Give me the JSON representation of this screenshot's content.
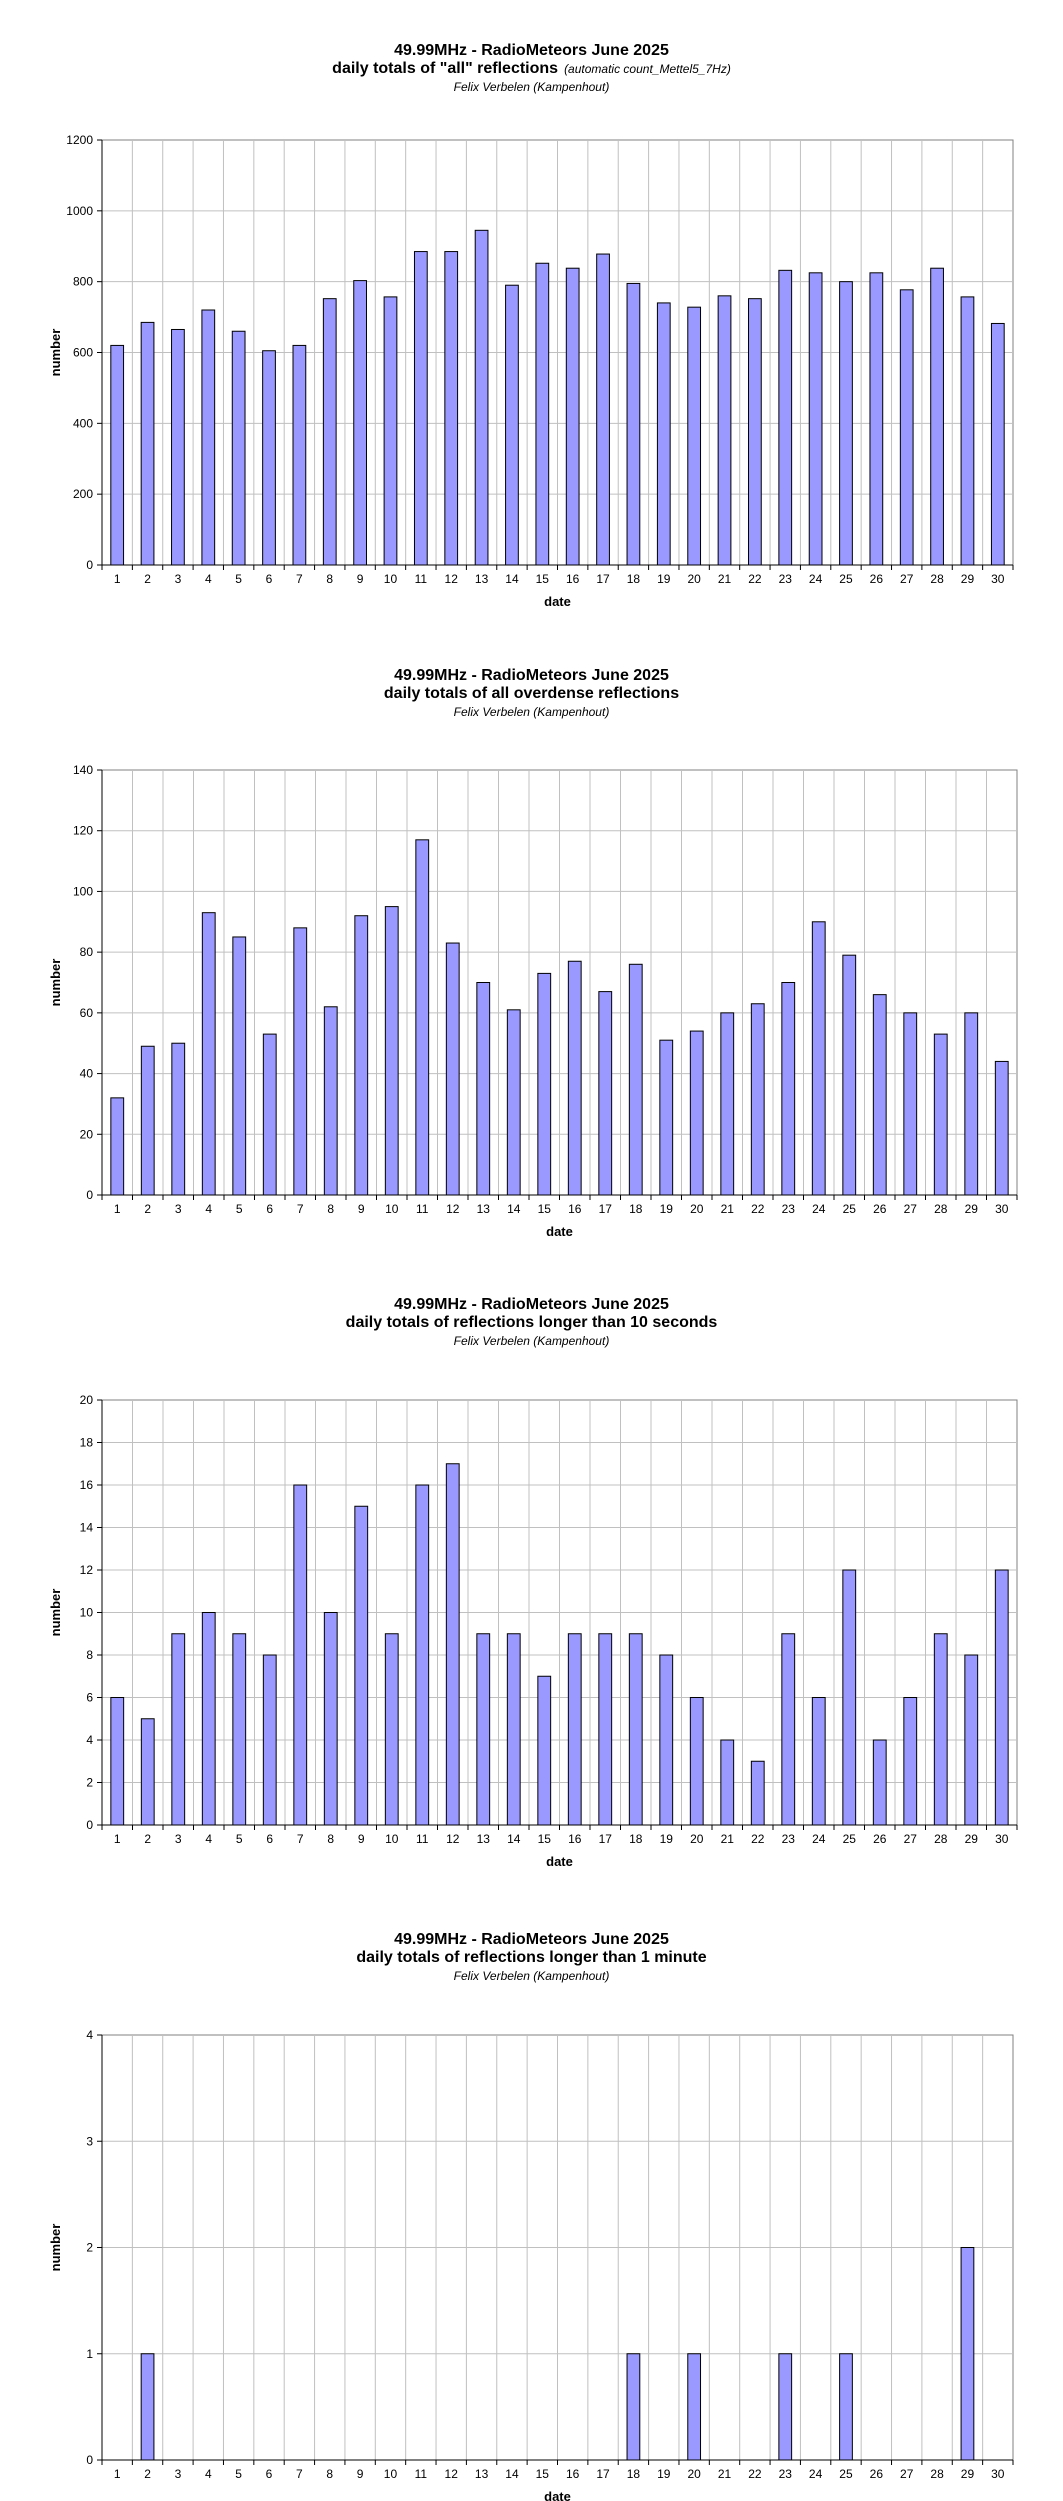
{
  "chart_data": [
    {
      "type": "bar",
      "title_line1": "49.99MHz - RadioMeteors June 2025",
      "title_line2": "daily totals of \"all\" reflections",
      "title_note": "(automatic count_Mettel5_7Hz)",
      "subtitle": "Felix Verbelen (Kampenhout)",
      "xlabel": "date",
      "ylabel": "number",
      "ylim": [
        0,
        1200
      ],
      "yticks": [
        0,
        200,
        400,
        600,
        800,
        1000,
        1200
      ],
      "categories": [
        "1",
        "2",
        "3",
        "4",
        "5",
        "6",
        "7",
        "8",
        "9",
        "10",
        "11",
        "12",
        "13",
        "14",
        "15",
        "16",
        "17",
        "18",
        "19",
        "20",
        "21",
        "22",
        "23",
        "24",
        "25",
        "26",
        "27",
        "28",
        "29",
        "30"
      ],
      "values": [
        620,
        685,
        665,
        720,
        660,
        605,
        620,
        752,
        803,
        757,
        885,
        885,
        945,
        790,
        852,
        838,
        878,
        795,
        740,
        728,
        760,
        752,
        832,
        825,
        800,
        825,
        777,
        838,
        757,
        682
      ],
      "grid": true,
      "legend": "none",
      "bar_color": "#9999ff"
    },
    {
      "type": "bar",
      "title_line1": "49.99MHz - RadioMeteors June 2025",
      "title_line2": "daily totals of all overdense reflections",
      "title_note": "",
      "subtitle": "Felix Verbelen (Kampenhout)",
      "xlabel": "date",
      "ylabel": "number",
      "ylim": [
        0,
        140
      ],
      "yticks": [
        0,
        20,
        40,
        60,
        80,
        100,
        120,
        140
      ],
      "categories": [
        "1",
        "2",
        "3",
        "4",
        "5",
        "6",
        "7",
        "8",
        "9",
        "10",
        "11",
        "12",
        "13",
        "14",
        "15",
        "16",
        "17",
        "18",
        "19",
        "20",
        "21",
        "22",
        "23",
        "24",
        "25",
        "26",
        "27",
        "28",
        "29",
        "30"
      ],
      "values": [
        32,
        49,
        50,
        93,
        85,
        53,
        88,
        62,
        92,
        95,
        117,
        83,
        70,
        61,
        73,
        77,
        67,
        76,
        51,
        54,
        60,
        63,
        70,
        90,
        79,
        66,
        60,
        53,
        60,
        44
      ],
      "grid": true,
      "legend": "none",
      "bar_color": "#9999ff"
    },
    {
      "type": "bar",
      "title_line1": "49.99MHz - RadioMeteors June 2025",
      "title_line2": "daily totals of reflections longer than 10 seconds",
      "title_note": "",
      "subtitle": "Felix Verbelen (Kampenhout)",
      "xlabel": "date",
      "ylabel": "number",
      "ylim": [
        0,
        20
      ],
      "yticks": [
        0,
        2,
        4,
        6,
        8,
        10,
        12,
        14,
        16,
        18,
        20
      ],
      "categories": [
        "1",
        "2",
        "3",
        "4",
        "5",
        "6",
        "7",
        "8",
        "9",
        "10",
        "11",
        "12",
        "13",
        "14",
        "15",
        "16",
        "17",
        "18",
        "19",
        "20",
        "21",
        "22",
        "23",
        "24",
        "25",
        "26",
        "27",
        "28",
        "29",
        "30"
      ],
      "values": [
        6,
        5,
        9,
        10,
        9,
        8,
        16,
        10,
        15,
        9,
        16,
        17,
        9,
        9,
        7,
        9,
        9,
        9,
        8,
        6,
        4,
        3,
        9,
        6,
        12,
        4,
        6,
        9,
        8,
        12
      ],
      "grid": true,
      "legend": "none",
      "bar_color": "#9999ff"
    },
    {
      "type": "bar",
      "title_line1": "49.99MHz - RadioMeteors June 2025",
      "title_line2": "daily totals of reflections longer than 1 minute",
      "title_note": "",
      "subtitle": "Felix Verbelen (Kampenhout)",
      "xlabel": "date",
      "ylabel": "number",
      "ylim": [
        0,
        4
      ],
      "yticks": [
        0,
        1,
        2,
        3,
        4
      ],
      "categories": [
        "1",
        "2",
        "3",
        "4",
        "5",
        "6",
        "7",
        "8",
        "9",
        "10",
        "11",
        "12",
        "13",
        "14",
        "15",
        "16",
        "17",
        "18",
        "19",
        "20",
        "21",
        "22",
        "23",
        "24",
        "25",
        "26",
        "27",
        "28",
        "29",
        "30"
      ],
      "values": [
        0,
        1,
        0,
        0,
        0,
        0,
        0,
        0,
        0,
        0,
        0,
        0,
        0,
        0,
        0,
        0,
        0,
        1,
        0,
        1,
        0,
        0,
        1,
        0,
        1,
        0,
        0,
        0,
        2,
        0
      ],
      "grid": true,
      "legend": "none",
      "bar_color": "#9999ff"
    }
  ]
}
